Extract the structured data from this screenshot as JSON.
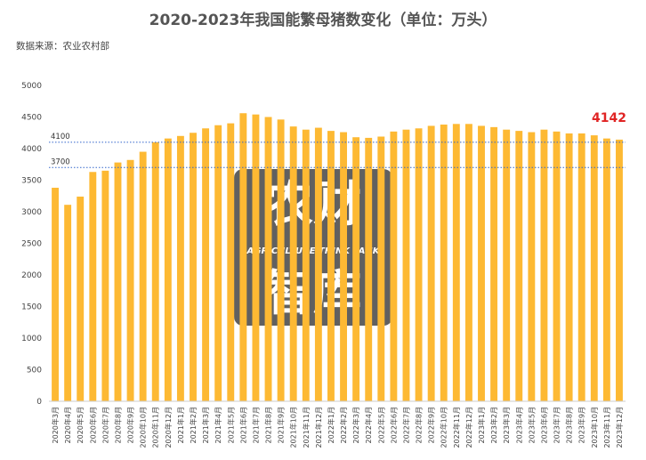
{
  "title": "2020-2023年我国能繁母猪数变化（单位：万头）",
  "source": "数据来源：农业农村部",
  "watermark": {
    "line1": "农财",
    "line2": "AGRICULTURE  THINK TANK",
    "line3": "智库"
  },
  "colors": {
    "bar": "#FDB933",
    "ref_line": "#3366cc",
    "highlight": "#e02424",
    "watermark": "#3d3d3d"
  },
  "chart_data": {
    "type": "bar",
    "title": "2020-2023年我国能繁母猪数变化（单位：万头）",
    "xlabel": "",
    "ylabel": "",
    "ylim": [
      0,
      5000
    ],
    "yticks": [
      0,
      500,
      1000,
      1500,
      2000,
      2500,
      3000,
      3500,
      4000,
      4500,
      5000
    ],
    "grid": false,
    "categories": [
      "2020年3月",
      "2020年4月",
      "2020年5月",
      "2020年6月",
      "2020年7月",
      "2020年8月",
      "2020年9月",
      "2020年10月",
      "2020年11月",
      "2020年12月",
      "2021年1月",
      "2021年2月",
      "2021年3月",
      "2021年4月",
      "2021年5月",
      "2021年6月",
      "2021年7月",
      "2021年8月",
      "2021年9月",
      "2021年10月",
      "2021年11月",
      "2021年12月",
      "2022年1月",
      "2022年2月",
      "2022年3月",
      "2022年4月",
      "2022年5月",
      "2022年6月",
      "2022年7月",
      "2022年8月",
      "2022年9月",
      "2022年10月",
      "2022年11月",
      "2022年12月",
      "2023年1月",
      "2023年2月",
      "2023年3月",
      "2023年4月",
      "2023年5月",
      "2023年6月",
      "2023年7月",
      "2023年8月",
      "2023年9月",
      "2023年10月",
      "2023年11月",
      "2023年12月"
    ],
    "values": [
      3380,
      3110,
      3240,
      3630,
      3650,
      3780,
      3820,
      3950,
      4100,
      4160,
      4200,
      4250,
      4320,
      4370,
      4400,
      4560,
      4540,
      4500,
      4460,
      4350,
      4300,
      4330,
      4280,
      4260,
      4180,
      4170,
      4190,
      4270,
      4300,
      4320,
      4360,
      4380,
      4390,
      4390,
      4360,
      4340,
      4300,
      4280,
      4260,
      4300,
      4270,
      4240,
      4240,
      4210,
      4160,
      4142
    ],
    "reference_lines": [
      {
        "value": 4100,
        "label": "4100"
      },
      {
        "value": 3700,
        "label": "3700"
      }
    ],
    "highlight_label": "4142"
  }
}
